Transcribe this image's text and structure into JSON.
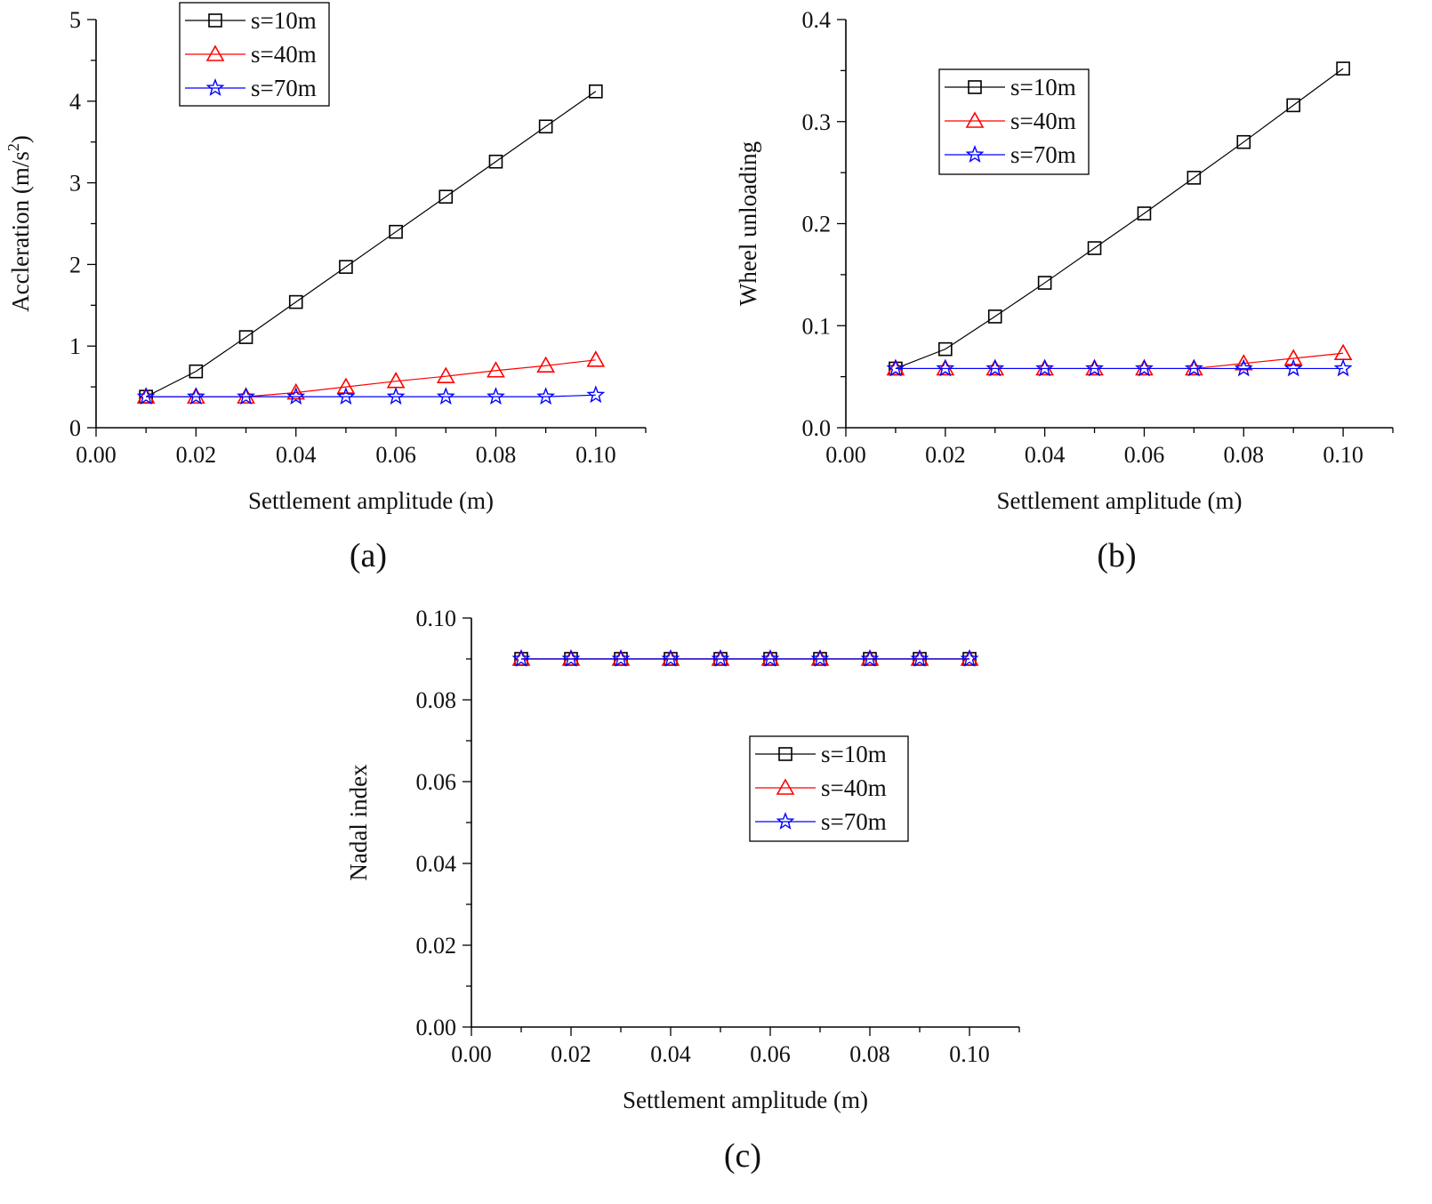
{
  "chart_data": [
    {
      "panel": "(a)",
      "type": "line",
      "xlabel": "Settlement amplitude (m)",
      "ylabel": "Accleration (m/s",
      "ylabel_sup": "2",
      "ylabel_suffix": ")",
      "xlim": [
        0,
        0.11
      ],
      "ylim": [
        0,
        5
      ],
      "xticks": [
        0,
        0.02,
        0.04,
        0.06,
        0.08,
        0.1
      ],
      "xtick_labels": [
        "0.00",
        "0.02",
        "0.04",
        "0.06",
        "0.08",
        "0.10"
      ],
      "yticks": [
        0,
        1,
        2,
        3,
        4,
        5
      ],
      "ytick_labels": [
        "0",
        "1",
        "2",
        "3",
        "4",
        "5"
      ],
      "legend_placement": "top-left",
      "x": [
        0.01,
        0.02,
        0.03,
        0.04,
        0.05,
        0.06,
        0.07,
        0.08,
        0.09,
        0.1
      ],
      "series": [
        {
          "name": "s=10m",
          "color": "#000000",
          "marker": "square",
          "values": [
            0.38,
            0.69,
            1.11,
            1.54,
            1.97,
            2.4,
            2.83,
            3.26,
            3.69,
            4.12
          ]
        },
        {
          "name": "s=40m",
          "color": "#ff0000",
          "marker": "triangle",
          "values": [
            0.38,
            0.38,
            0.38,
            0.43,
            0.5,
            0.57,
            0.63,
            0.7,
            0.76,
            0.83
          ]
        },
        {
          "name": "s=70m",
          "color": "#0000ff",
          "marker": "star",
          "values": [
            0.38,
            0.38,
            0.38,
            0.38,
            0.38,
            0.38,
            0.38,
            0.38,
            0.38,
            0.4
          ]
        }
      ]
    },
    {
      "panel": "(b)",
      "type": "line",
      "xlabel": "Settlement amplitude (m)",
      "ylabel": "Wheel unloading",
      "xlim": [
        0,
        0.11
      ],
      "ylim": [
        0,
        0.4
      ],
      "xticks": [
        0,
        0.02,
        0.04,
        0.06,
        0.08,
        0.1
      ],
      "xtick_labels": [
        "0.00",
        "0.02",
        "0.04",
        "0.06",
        "0.08",
        "0.10"
      ],
      "yticks": [
        0,
        0.1,
        0.2,
        0.3,
        0.4
      ],
      "ytick_labels": [
        "0.0",
        "0.1",
        "0.2",
        "0.3",
        "0.4"
      ],
      "legend_placement": "upper-center",
      "x": [
        0.01,
        0.02,
        0.03,
        0.04,
        0.05,
        0.06,
        0.07,
        0.08,
        0.09,
        0.1
      ],
      "series": [
        {
          "name": "s=10m",
          "color": "#000000",
          "marker": "square",
          "values": [
            0.058,
            0.077,
            0.109,
            0.142,
            0.176,
            0.21,
            0.245,
            0.28,
            0.316,
            0.352
          ]
        },
        {
          "name": "s=40m",
          "color": "#ff0000",
          "marker": "triangle",
          "values": [
            0.058,
            0.058,
            0.058,
            0.058,
            0.058,
            0.058,
            0.058,
            0.063,
            0.068,
            0.073
          ]
        },
        {
          "name": "s=70m",
          "color": "#0000ff",
          "marker": "star",
          "values": [
            0.058,
            0.058,
            0.058,
            0.058,
            0.058,
            0.058,
            0.058,
            0.058,
            0.058,
            0.058
          ]
        }
      ]
    },
    {
      "panel": "(c)",
      "type": "line",
      "xlabel": "Settlement amplitude (m)",
      "ylabel": "Nadal index",
      "xlim": [
        0,
        0.11
      ],
      "ylim": [
        0,
        0.1
      ],
      "xticks": [
        0,
        0.02,
        0.04,
        0.06,
        0.08,
        0.1
      ],
      "xtick_labels": [
        "0.00",
        "0.02",
        "0.04",
        "0.06",
        "0.08",
        "0.10"
      ],
      "yticks": [
        0,
        0.02,
        0.04,
        0.06,
        0.08,
        0.1
      ],
      "ytick_labels": [
        "0.00",
        "0.02",
        "0.04",
        "0.06",
        "0.08",
        "0.10"
      ],
      "legend_placement": "center",
      "x": [
        0.01,
        0.02,
        0.03,
        0.04,
        0.05,
        0.06,
        0.07,
        0.08,
        0.09,
        0.1
      ],
      "series": [
        {
          "name": "s=10m",
          "color": "#000000",
          "marker": "square",
          "values": [
            0.09,
            0.09,
            0.09,
            0.09,
            0.09,
            0.09,
            0.09,
            0.09,
            0.09,
            0.09
          ]
        },
        {
          "name": "s=40m",
          "color": "#ff0000",
          "marker": "triangle",
          "values": [
            0.09,
            0.09,
            0.09,
            0.09,
            0.09,
            0.09,
            0.09,
            0.09,
            0.09,
            0.09
          ]
        },
        {
          "name": "s=70m",
          "color": "#0000ff",
          "marker": "star",
          "values": [
            0.09,
            0.09,
            0.09,
            0.09,
            0.09,
            0.09,
            0.09,
            0.09,
            0.09,
            0.09
          ]
        }
      ]
    }
  ]
}
